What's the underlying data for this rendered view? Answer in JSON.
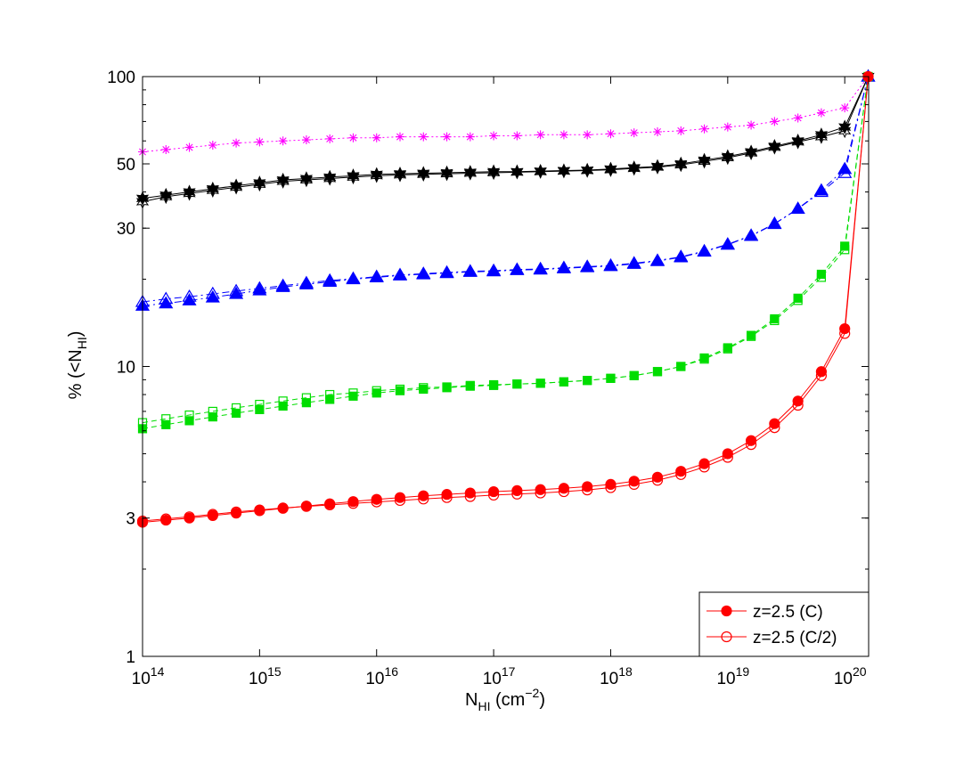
{
  "chart_data": {
    "type": "line",
    "xlabel": {
      "main": "N",
      "sub": "HI",
      "unit_open": " (cm",
      "sup": "−2",
      "unit_close": ")"
    },
    "ylabel": {
      "main": "% (<N",
      "sub": "HI",
      "close": ")"
    },
    "x_scale": "log",
    "y_scale": "log",
    "xlim": [
      100000000000000.0,
      1.6e+20
    ],
    "ylim": [
      1,
      100
    ],
    "x_ticks": [
      {
        "value": 100000000000000.0,
        "base": "10",
        "exp": "14"
      },
      {
        "value": 1000000000000000.0,
        "base": "10",
        "exp": "15"
      },
      {
        "value": 1e+16,
        "base": "10",
        "exp": "16"
      },
      {
        "value": 1e+17,
        "base": "10",
        "exp": "17"
      },
      {
        "value": 1e+18,
        "base": "10",
        "exp": "18"
      },
      {
        "value": 1e+19,
        "base": "10",
        "exp": "19"
      },
      {
        "value": 1e+20,
        "base": "10",
        "exp": "20"
      }
    ],
    "y_ticks": [
      {
        "value": 1,
        "label": "1"
      },
      {
        "value": 3,
        "label": "3"
      },
      {
        "value": 10,
        "label": "10"
      },
      {
        "value": 30,
        "label": "30"
      },
      {
        "value": 50,
        "label": "50"
      },
      {
        "value": 100,
        "label": "100"
      }
    ],
    "grid": false,
    "legend_position": "bottom-right",
    "x_log10": [
      14.0,
      14.2,
      14.4,
      14.6,
      14.8,
      15.0,
      15.2,
      15.4,
      15.6,
      15.8,
      16.0,
      16.2,
      16.4,
      16.6,
      16.8,
      17.0,
      17.2,
      17.4,
      17.6,
      17.8,
      18.0,
      18.2,
      18.4,
      18.6,
      18.8,
      19.0,
      19.2,
      19.4,
      19.6,
      19.8,
      20.0,
      20.2
    ],
    "series": [
      {
        "name": "",
        "color": "#ff00ff",
        "marker": "asterisk",
        "filled": true,
        "dash": "2,3",
        "values": [
          55,
          56,
          57,
          58,
          59,
          59.5,
          60,
          60.5,
          61,
          61.5,
          61.5,
          62,
          62,
          62,
          62,
          62.5,
          62.5,
          63,
          63,
          63,
          63.5,
          64,
          64.5,
          65,
          66,
          67,
          68,
          70,
          72,
          75,
          78,
          100
        ]
      },
      {
        "name": "",
        "color": "#000000",
        "marker": "star",
        "filled": true,
        "dash": "",
        "values": [
          38,
          39,
          40,
          41,
          42,
          43,
          44,
          44.5,
          45,
          45.5,
          46,
          46.2,
          46.4,
          46.6,
          46.8,
          47,
          47,
          47.2,
          47.4,
          47.6,
          48,
          48.5,
          49,
          50,
          51.5,
          53,
          55,
          57.5,
          60,
          63,
          67,
          100
        ]
      },
      {
        "name": "",
        "color": "#000000",
        "marker": "star",
        "filled": false,
        "dash": "",
        "values": [
          37,
          38.5,
          39.5,
          40.5,
          41.5,
          42.5,
          43.5,
          44,
          44.5,
          45,
          45.5,
          45.8,
          46,
          46.2,
          46.4,
          46.6,
          46.8,
          47,
          47.2,
          47.4,
          47.7,
          48.2,
          48.7,
          49.6,
          51,
          52.5,
          54.5,
          57,
          59.5,
          62,
          65,
          100
        ]
      },
      {
        "name": "",
        "color": "#0000ff",
        "marker": "triangle",
        "filled": true,
        "dash": "8,4,2,4",
        "values": [
          16.2,
          16.5,
          16.9,
          17.3,
          17.8,
          18.3,
          18.8,
          19.2,
          19.6,
          20.0,
          20.3,
          20.6,
          20.8,
          21.0,
          21.2,
          21.3,
          21.5,
          21.6,
          21.8,
          22.0,
          22.2,
          22.6,
          23.1,
          23.8,
          24.9,
          26.3,
          28.2,
          31.0,
          35.0,
          40.5,
          48.0,
          100
        ]
      },
      {
        "name": "",
        "color": "#0000ff",
        "marker": "triangle",
        "filled": false,
        "dash": "8,4,2,4",
        "values": [
          16.7,
          17.1,
          17.4,
          17.8,
          18.2,
          18.6,
          19.0,
          19.4,
          19.8,
          20.1,
          20.4,
          20.7,
          20.9,
          21.1,
          21.3,
          21.4,
          21.6,
          21.7,
          21.9,
          22.1,
          22.3,
          22.7,
          23.2,
          23.9,
          25.0,
          26.4,
          28.3,
          31.1,
          35.0,
          40.0,
          46.5,
          100
        ]
      },
      {
        "name": "",
        "color": "#00dd00",
        "marker": "square",
        "filled": true,
        "dash": "6,4",
        "values": [
          6.1,
          6.3,
          6.5,
          6.7,
          6.9,
          7.1,
          7.3,
          7.5,
          7.7,
          7.9,
          8.1,
          8.25,
          8.35,
          8.45,
          8.55,
          8.6,
          8.7,
          8.75,
          8.85,
          8.95,
          9.1,
          9.3,
          9.6,
          10.0,
          10.7,
          11.6,
          12.8,
          14.6,
          17.2,
          20.8,
          26.0,
          100
        ]
      },
      {
        "name": "",
        "color": "#00dd00",
        "marker": "square",
        "filled": false,
        "dash": "6,4",
        "values": [
          6.4,
          6.6,
          6.8,
          7.0,
          7.2,
          7.4,
          7.6,
          7.8,
          8.0,
          8.1,
          8.25,
          8.35,
          8.45,
          8.5,
          8.6,
          8.65,
          8.7,
          8.75,
          8.85,
          8.95,
          9.1,
          9.3,
          9.6,
          10.0,
          10.6,
          11.5,
          12.7,
          14.4,
          16.9,
          20.3,
          25.3,
          100
        ]
      },
      {
        "name": "z=2.5 (C)",
        "color": "#ff0000",
        "marker": "circle",
        "filled": true,
        "dash": "",
        "values": [
          2.9,
          2.95,
          3.0,
          3.06,
          3.12,
          3.18,
          3.24,
          3.3,
          3.36,
          3.42,
          3.48,
          3.53,
          3.58,
          3.62,
          3.66,
          3.7,
          3.73,
          3.76,
          3.8,
          3.85,
          3.92,
          4.02,
          4.15,
          4.35,
          4.62,
          5.0,
          5.55,
          6.35,
          7.6,
          9.6,
          13.5,
          100
        ]
      },
      {
        "name": "z=2.5 (C/2)",
        "color": "#ff0000",
        "marker": "circle",
        "filled": false,
        "dash": "",
        "values": [
          2.93,
          2.98,
          3.03,
          3.09,
          3.15,
          3.2,
          3.25,
          3.29,
          3.33,
          3.37,
          3.41,
          3.45,
          3.49,
          3.53,
          3.56,
          3.6,
          3.63,
          3.66,
          3.7,
          3.75,
          3.82,
          3.92,
          4.05,
          4.24,
          4.5,
          4.86,
          5.38,
          6.15,
          7.35,
          9.3,
          13.0,
          100
        ]
      }
    ]
  }
}
